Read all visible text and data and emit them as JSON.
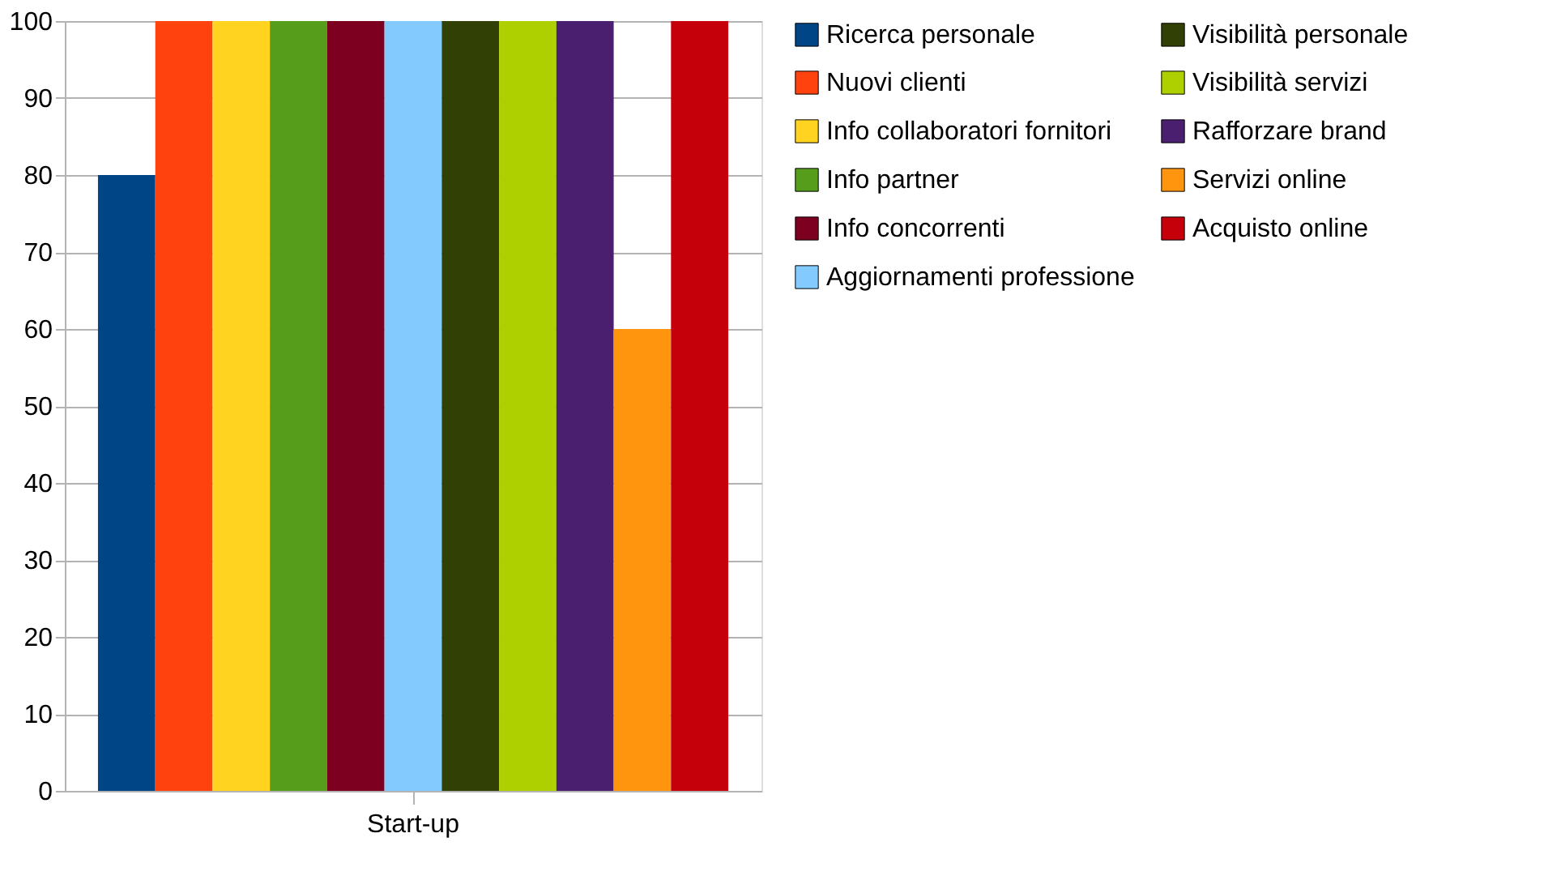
{
  "chart_data": {
    "type": "bar",
    "categories": [
      "Start-up"
    ],
    "series": [
      {
        "name": "Ricerca personale",
        "color": "#004586",
        "values": [
          80
        ]
      },
      {
        "name": "Nuovi clienti",
        "color": "#ff420e",
        "values": [
          100
        ]
      },
      {
        "name": "Info collaboratori fornitori",
        "color": "#ffd320",
        "values": [
          100
        ]
      },
      {
        "name": "Info partner",
        "color": "#579d1c",
        "values": [
          100
        ]
      },
      {
        "name": "Info concorrenti",
        "color": "#7e0021",
        "values": [
          100
        ]
      },
      {
        "name": "Aggiornamenti professione",
        "color": "#83caff",
        "values": [
          100
        ]
      },
      {
        "name": "Visibilità personale",
        "color": "#314004",
        "values": [
          100
        ]
      },
      {
        "name": "Visibilità servizi",
        "color": "#aecf00",
        "values": [
          100
        ]
      },
      {
        "name": "Rafforzare brand",
        "color": "#4b1f6f",
        "values": [
          100
        ]
      },
      {
        "name": "Servizi online",
        "color": "#ff950e",
        "values": [
          60
        ]
      },
      {
        "name": "Acquisto online",
        "color": "#c5000b",
        "values": [
          100
        ]
      }
    ],
    "ylim": [
      0,
      100
    ],
    "yticks": [
      0,
      10,
      20,
      30,
      40,
      50,
      60,
      70,
      80,
      90,
      100
    ],
    "grid": "y",
    "legend": "right"
  }
}
